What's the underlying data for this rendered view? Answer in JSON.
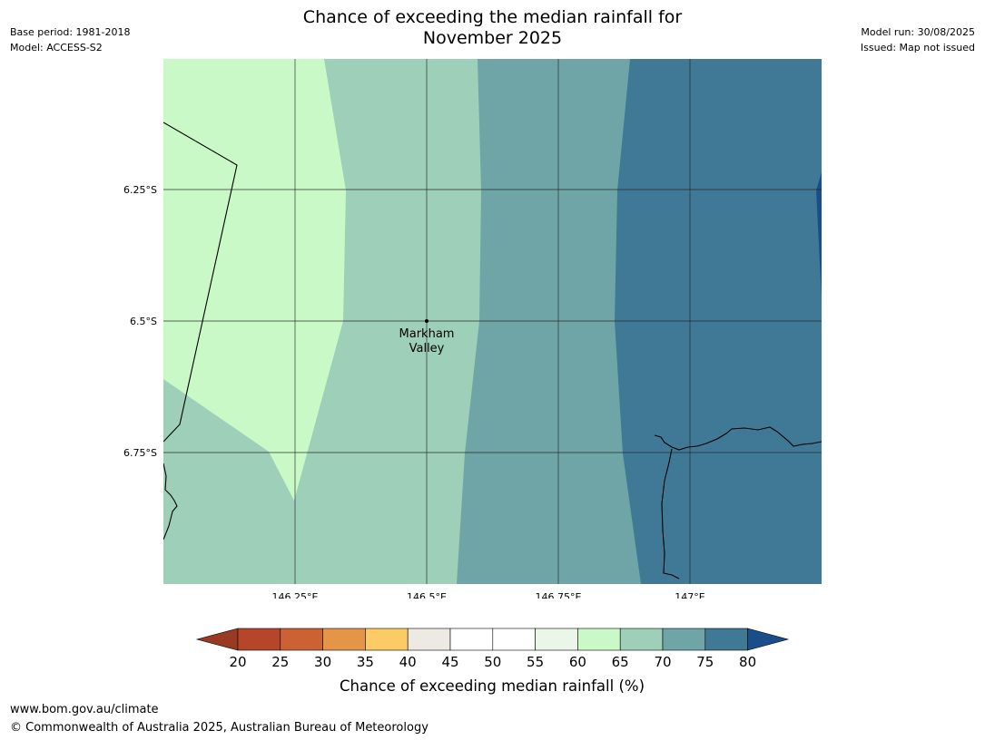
{
  "title_line1": "Chance of exceeding the median rainfall for",
  "title_line2": "November 2025",
  "base_period": "Base period: 1981-2018",
  "model": "Model: ACCESS-S2",
  "model_run": "Model run: 30/08/2025",
  "issued": "Issued: Map not issued",
  "lat_labels": [
    "6.25°S",
    "6.5°S",
    "6.75°S"
  ],
  "lon_labels": [
    "146.25°E",
    "146.5°E",
    "146.75°E",
    "147°E"
  ],
  "place": {
    "line1": "Markham",
    "line2": "Valley"
  },
  "colorbar": {
    "label": "Chance of exceeding median rainfall (%)",
    "ticks": [
      "20",
      "25",
      "30",
      "35",
      "40",
      "45",
      "50",
      "55",
      "60",
      "65",
      "70",
      "75",
      "80"
    ],
    "colors": {
      "below_20": "#9b3a22",
      "20_25": "#b5462a",
      "25_30": "#cc6133",
      "30_35": "#e49547",
      "35_40": "#fdcb66",
      "40_45": "#ede9e3",
      "45_50": "#ffffff",
      "50_55": "#ffffff",
      "55_60": "#eaf6e8",
      "60_65": "#caf9c8",
      "65_70": "#9ecfb8",
      "70_75": "#70a5a8",
      "75_80": "#407996",
      "above_80": "#1a4e8a"
    }
  },
  "footer_url": "www.bom.gov.au/climate",
  "footer_copyright": "© Commonwealth of Australia 2025, Australian Bureau of Meteorology"
}
